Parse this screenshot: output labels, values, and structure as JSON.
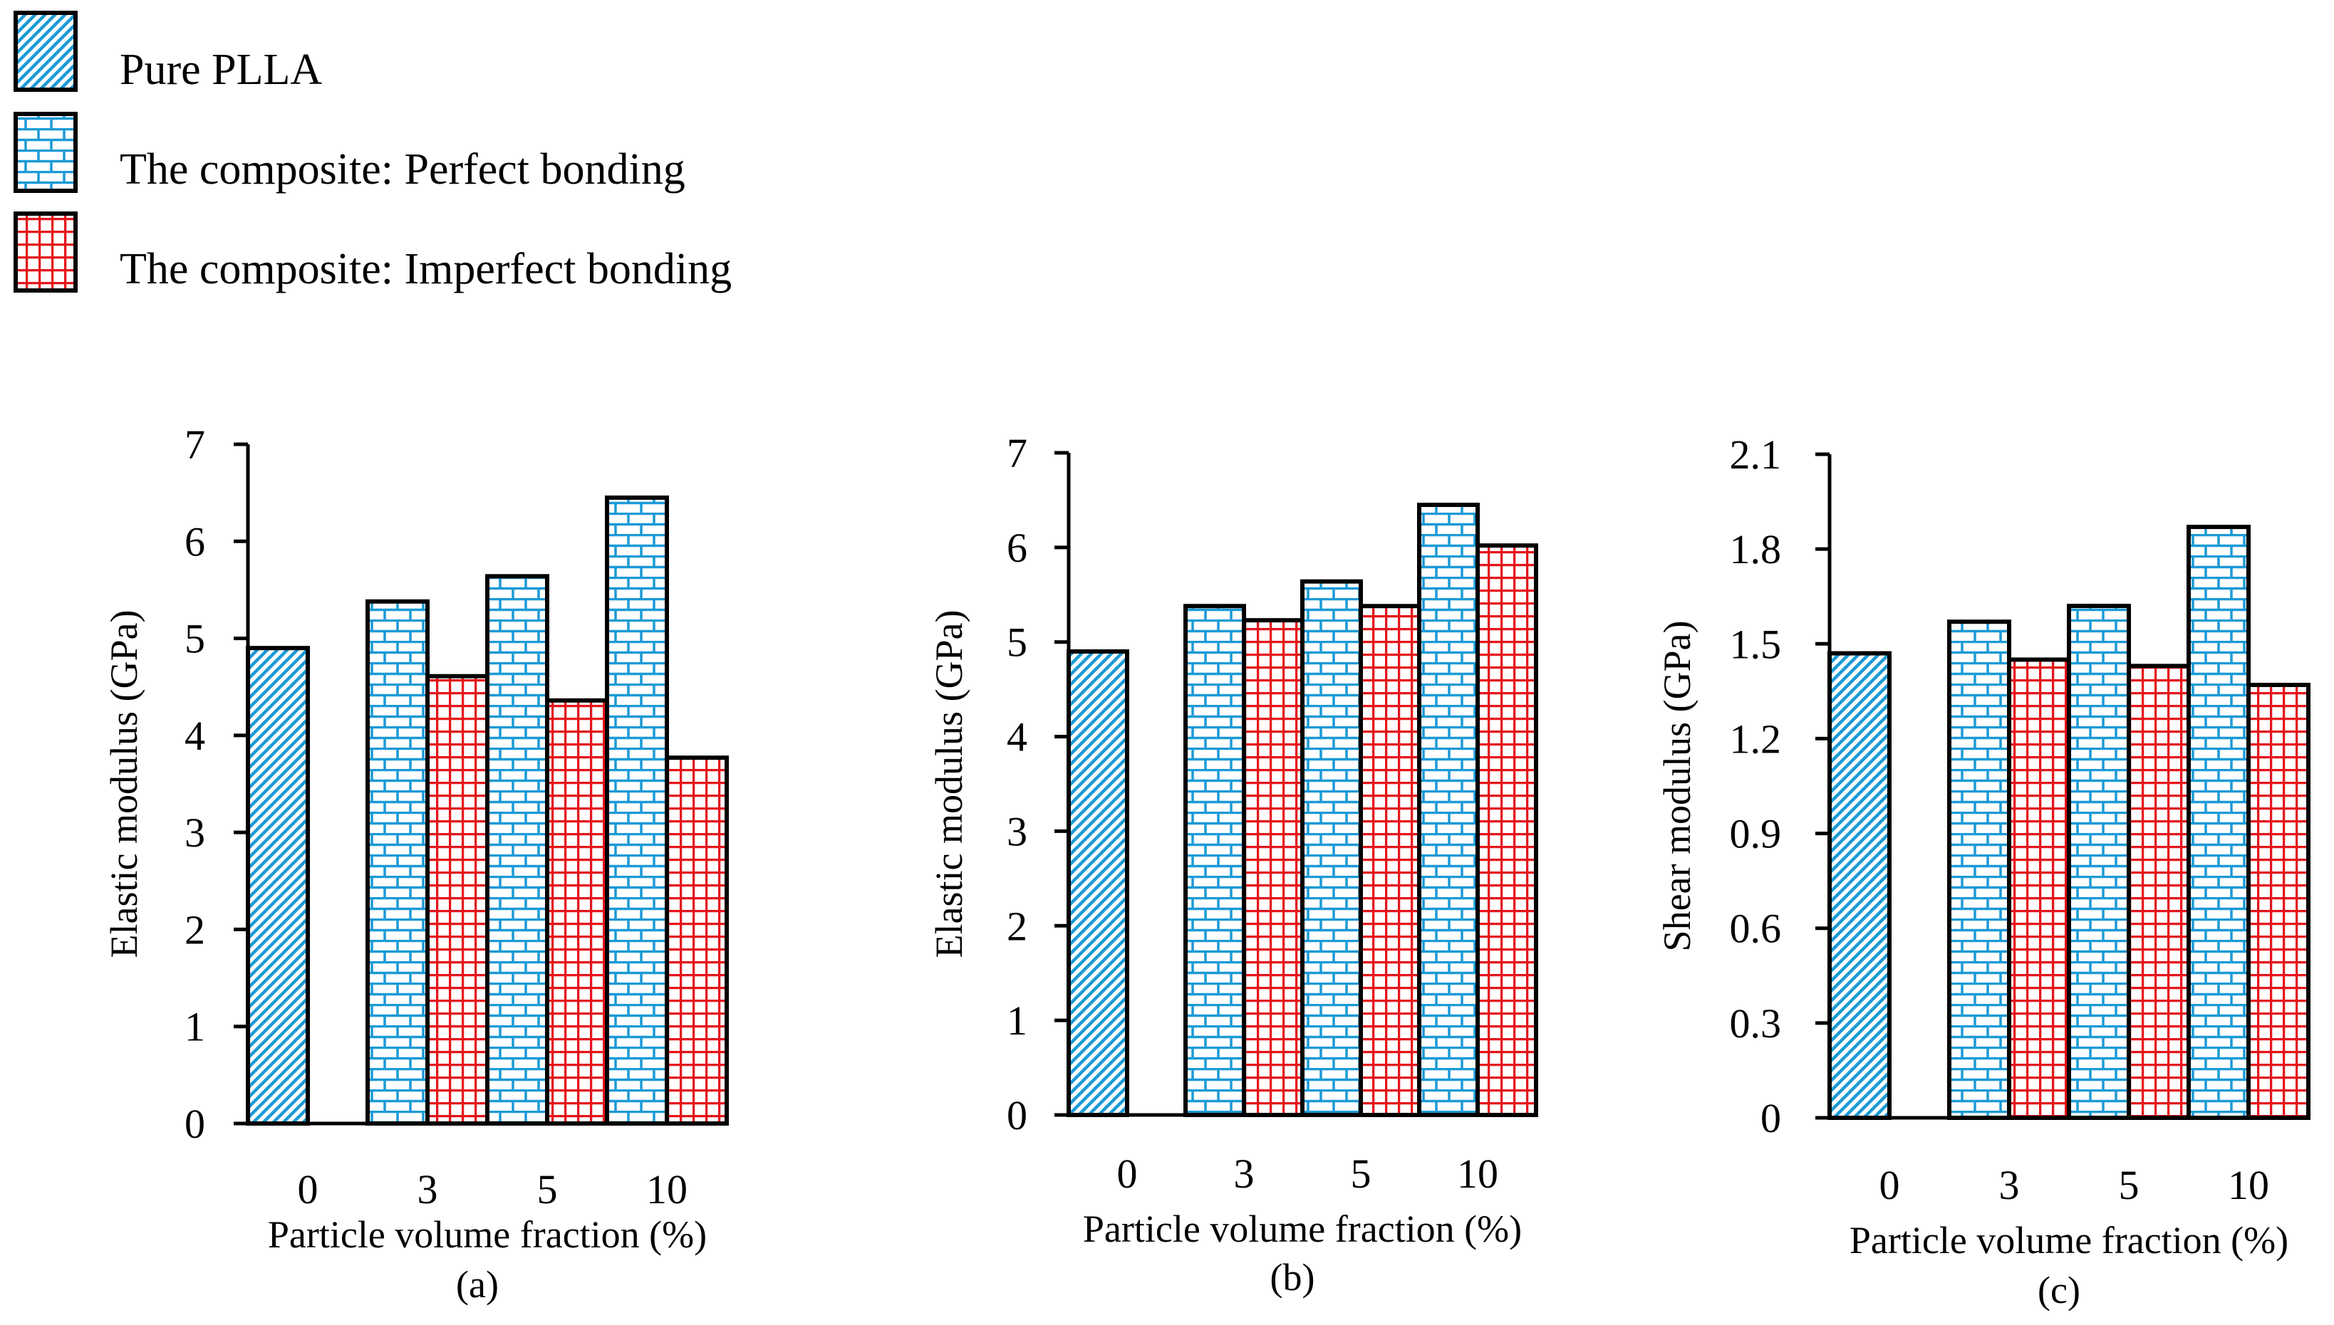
{
  "colors": {
    "perfect": "#1b9ad6",
    "imperfect": "#e5141b",
    "pure": "#1b9ad6",
    "outline": "#000000"
  },
  "legend": [
    {
      "label": "Pure PLLA",
      "pattern": "diag"
    },
    {
      "label": "The composite: Perfect bonding",
      "pattern": "brick"
    },
    {
      "label": "The composite: Imperfect bonding",
      "pattern": "grid"
    }
  ],
  "chart_data": [
    {
      "type": "bar",
      "panel": "(a)",
      "categories": [
        "0",
        "3",
        "5",
        "10"
      ],
      "xlabel": "Particle volume fraction (%)",
      "ylabel": "Elastic modulus (GPa)",
      "ylim": [
        0,
        7
      ],
      "yticks": [
        "0",
        "1",
        "2",
        "3",
        "4",
        "5",
        "6",
        "7"
      ],
      "series": [
        {
          "name": "Pure PLLA",
          "pattern": "diag",
          "values": [
            4.9,
            0,
            0,
            0
          ]
        },
        {
          "name": "The composite: Perfect bonding",
          "pattern": "brick",
          "values": [
            null,
            5.38,
            5.64,
            6.45
          ]
        },
        {
          "name": "The composite: Imperfect bonding",
          "pattern": "grid",
          "values": [
            null,
            4.61,
            4.36,
            3.77
          ]
        }
      ]
    },
    {
      "type": "bar",
      "panel": "(b)",
      "categories": [
        "0",
        "3",
        "5",
        "10"
      ],
      "xlabel": "Particle volume fraction (%)",
      "ylabel": "Elastic modulus (GPa)",
      "ylim": [
        0,
        7
      ],
      "yticks": [
        "0",
        "1",
        "2",
        "3",
        "4",
        "5",
        "6",
        "7"
      ],
      "series": [
        {
          "name": "Pure PLLA",
          "pattern": "diag",
          "values": [
            4.9,
            0,
            0,
            0
          ]
        },
        {
          "name": "The composite: Perfect bonding",
          "pattern": "brick",
          "values": [
            null,
            5.38,
            5.64,
            6.45
          ]
        },
        {
          "name": "The composite: Imperfect bonding",
          "pattern": "grid",
          "values": [
            null,
            5.23,
            5.38,
            6.02
          ]
        }
      ]
    },
    {
      "type": "bar",
      "panel": "(c)",
      "categories": [
        "0",
        "3",
        "5",
        "10"
      ],
      "xlabel": "Particle volume fraction (%)",
      "ylabel": "Shear modulus (GPa)",
      "ylim": [
        0,
        2.1
      ],
      "yticks": [
        "0",
        "0.3",
        "0.6",
        "0.9",
        "1.2",
        "1.5",
        "1.8",
        "2.1"
      ],
      "series": [
        {
          "name": "Pure PLLA",
          "pattern": "diag",
          "values": [
            1.47,
            0,
            0,
            0
          ]
        },
        {
          "name": "The composite: Perfect bonding",
          "pattern": "brick",
          "values": [
            null,
            1.57,
            1.62,
            1.87
          ]
        },
        {
          "name": "The composite: Imperfect bonding",
          "pattern": "grid",
          "values": [
            null,
            1.45,
            1.43,
            1.37
          ]
        }
      ]
    }
  ]
}
